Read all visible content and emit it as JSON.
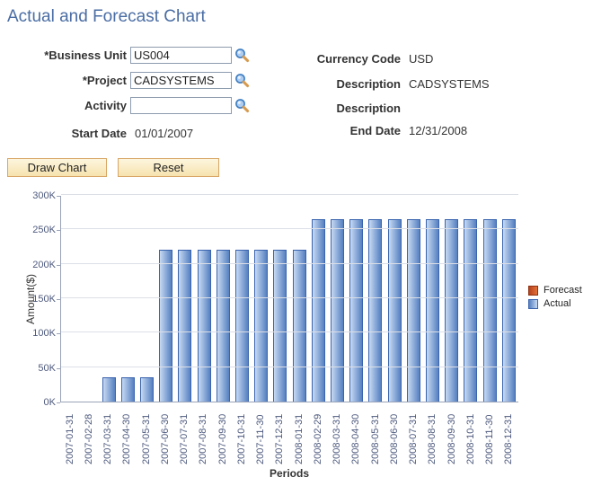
{
  "page": {
    "title": "Actual and Forecast Chart"
  },
  "form": {
    "lookup_rows": [
      {
        "label": "*Business Unit",
        "value": "US004"
      },
      {
        "label": "*Project",
        "value": "CADSYSTEMS"
      },
      {
        "label": "Activity",
        "value": ""
      }
    ],
    "readonly_left": [
      {
        "label": "Start Date",
        "value": "01/01/2007"
      }
    ],
    "readonly_right": [
      {
        "label": "Currency Code",
        "value": "USD"
      },
      {
        "label": "Description",
        "value": "CADSYSTEMS"
      },
      {
        "label": "Description",
        "value": ""
      },
      {
        "label": "End Date",
        "value": "12/31/2008"
      }
    ],
    "buttons": [
      {
        "label": "Draw Chart"
      },
      {
        "label": "Reset"
      }
    ]
  },
  "chart_data": {
    "type": "bar",
    "title": "",
    "xlabel": "Periods",
    "ylabel": "Amount($)",
    "ylim": [
      0,
      300000
    ],
    "ytick_labels": [
      "0K",
      "50K",
      "100K",
      "150K",
      "200K",
      "250K",
      "300K"
    ],
    "grid": true,
    "legend_position": "right",
    "categories": [
      "2007-01-31",
      "2007-02-28",
      "2007-03-31",
      "2007-04-30",
      "2007-05-31",
      "2007-06-30",
      "2007-07-31",
      "2007-08-31",
      "2007-09-30",
      "2007-10-31",
      "2007-11-30",
      "2007-12-31",
      "2008-01-31",
      "2008-02-29",
      "2008-03-31",
      "2008-04-30",
      "2008-05-31",
      "2008-06-30",
      "2008-07-31",
      "2008-08-31",
      "2008-09-30",
      "2008-10-31",
      "2008-11-30",
      "2008-12-31"
    ],
    "series": [
      {
        "name": "Forecast",
        "color_light": "#e5703a",
        "color_dark": "#b5431c",
        "border": "#8f2f10",
        "values": [
          0,
          0,
          0,
          0,
          0,
          0,
          0,
          0,
          0,
          0,
          0,
          0,
          0,
          0,
          0,
          0,
          0,
          0,
          0,
          0,
          0,
          0,
          0,
          0
        ]
      },
      {
        "name": "Actual",
        "color_light": "#c6d9f3",
        "color_dark": "#5580c0",
        "border": "#3a64ae",
        "values": [
          0,
          0,
          35000,
          35000,
          35000,
          220000,
          220000,
          220000,
          220000,
          220000,
          220000,
          220000,
          220000,
          265000,
          265000,
          265000,
          265000,
          265000,
          265000,
          265000,
          265000,
          265000,
          265000,
          265000
        ]
      }
    ]
  },
  "colors": {
    "title_text": "#4a6da4",
    "axis_line": "#9aa3b8",
    "gridline": "#dcdfe6",
    "tick_text": "#4e5a7e",
    "button_bg": "#f9e8bd",
    "button_border": "#d8a666"
  }
}
